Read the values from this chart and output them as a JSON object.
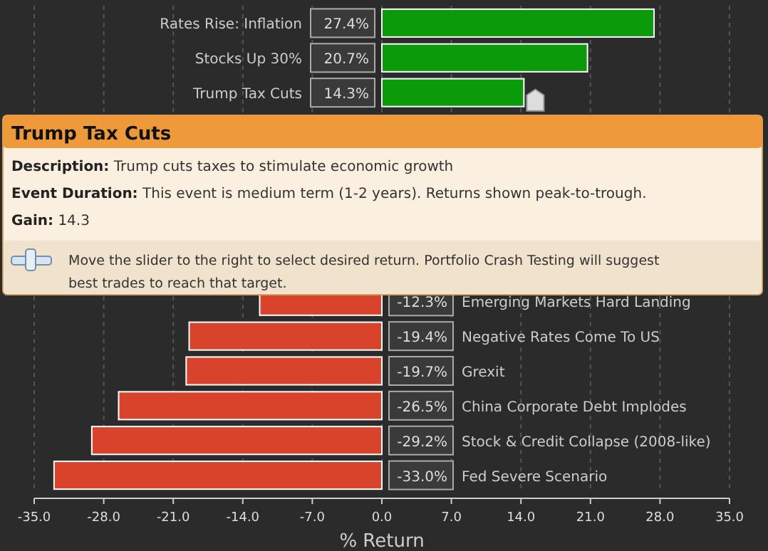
{
  "chart_data": {
    "type": "bar",
    "orientation": "horizontal",
    "xlabel": "% Return",
    "categories": [
      "Rates Rise: Inflation",
      "Stocks Up 30%",
      "Trump Tax Cuts",
      null,
      null,
      null,
      null,
      null,
      "Emerging Markets Hard Landing",
      "Negative Rates Come To US",
      "Grexit",
      "China Corporate Debt Implodes",
      "Stock & Credit Collapse (2008-like)",
      "Fed Severe Scenario"
    ],
    "values": [
      27.4,
      20.7,
      14.3,
      null,
      null,
      null,
      null,
      null,
      -12.3,
      -19.4,
      -19.7,
      -26.5,
      -29.2,
      -33.0
    ],
    "value_labels": [
      "27.4%",
      "20.7%",
      "14.3%",
      null,
      null,
      null,
      null,
      null,
      "-12.3%",
      "-19.4%",
      "-19.7%",
      "-26.5%",
      "-29.2%",
      "-33.0%"
    ],
    "colors": [
      "#0a9a0a",
      "#0a9a0a",
      "#0a9a0a",
      null,
      null,
      null,
      null,
      null,
      "#d8442b",
      "#d8442b",
      "#d8442b",
      "#d8442b",
      "#d8442b",
      "#d8442b"
    ],
    "xlim": [
      -35,
      35
    ],
    "xticks": [
      {
        "value": -35,
        "label": "-35.0"
      },
      {
        "value": -28,
        "label": "-28.0"
      },
      {
        "value": -21,
        "label": "-21.0"
      },
      {
        "value": -14,
        "label": "-14.0"
      },
      {
        "value": -7,
        "label": "-7.0"
      },
      {
        "value": 0,
        "label": "0.0"
      },
      {
        "value": 7,
        "label": "7.0"
      },
      {
        "value": 14,
        "label": "14.0"
      },
      {
        "value": 21,
        "label": "21.0"
      },
      {
        "value": 28,
        "label": "28.0"
      },
      {
        "value": 35,
        "label": "35.0"
      }
    ],
    "grid": "x",
    "annotations": [
      "Trump Tax Cuts",
      "Description: Trump cuts taxes to stimulate economic growth",
      "Event Duration: This event is medium term (1-2 years). Returns shown peak-to-trough.",
      "Gain: 14.3",
      "Move the slider to the right to select desired return. Portfolio Crash Testing will suggest best trades to reach that target."
    ]
  }
}
